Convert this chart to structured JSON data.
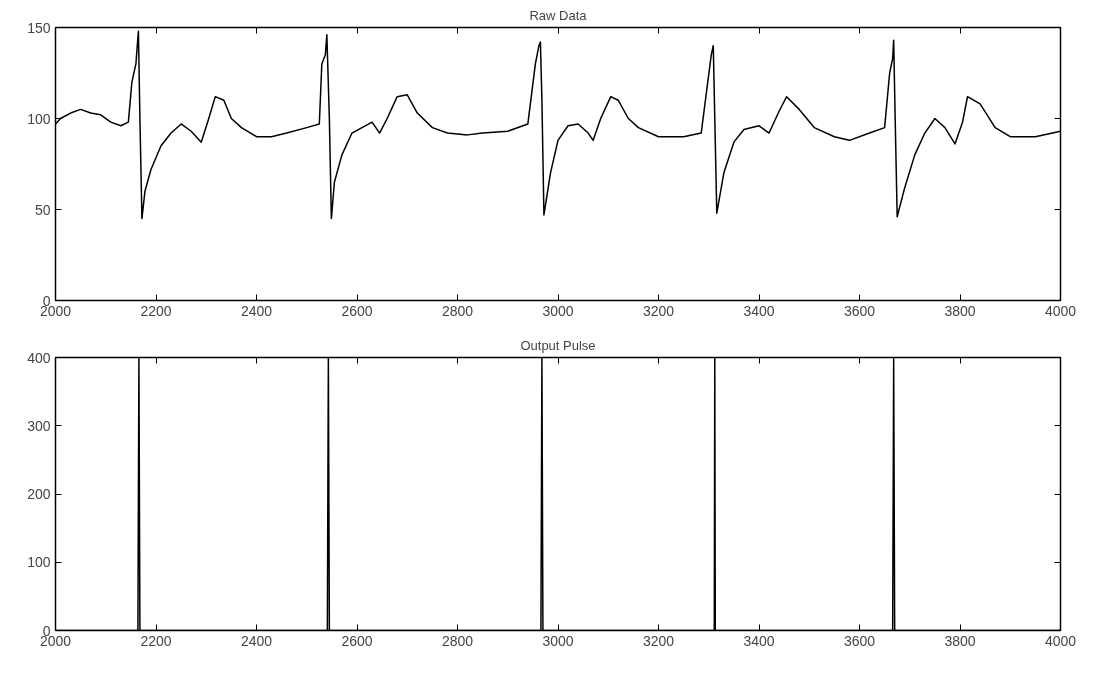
{
  "chart_data": [
    {
      "type": "line",
      "title": "Raw Data",
      "xlim": [
        2000,
        4000
      ],
      "ylim": [
        0,
        150
      ],
      "xticks": [
        2000,
        2200,
        2400,
        2600,
        2800,
        3000,
        3200,
        3400,
        3600,
        3800,
        4000
      ],
      "yticks": [
        0,
        50,
        100,
        150
      ],
      "grid": false,
      "marker": "none",
      "line_style": "solid",
      "series": [
        {
          "color": "#000000",
          "x": [
            2000,
            2010,
            2030,
            2050,
            2070,
            2090,
            2110,
            2130,
            2145,
            2152,
            2160,
            2165,
            2168,
            2172,
            2178,
            2190,
            2210,
            2230,
            2250,
            2270,
            2290,
            2305,
            2318,
            2335,
            2350,
            2370,
            2400,
            2430,
            2460,
            2500,
            2525,
            2530,
            2537,
            2540,
            2545,
            2549,
            2555,
            2570,
            2590,
            2610,
            2630,
            2645,
            2660,
            2680,
            2700,
            2720,
            2750,
            2780,
            2820,
            2850,
            2900,
            2940,
            2955,
            2962,
            2965,
            2968,
            2972,
            2985,
            3000,
            3020,
            3040,
            3060,
            3070,
            3085,
            3105,
            3120,
            3140,
            3160,
            3200,
            3250,
            3285,
            3298,
            3305,
            3309,
            3312,
            3316,
            3330,
            3350,
            3370,
            3400,
            3420,
            3440,
            3455,
            3480,
            3510,
            3550,
            3580,
            3620,
            3650,
            3660,
            3666,
            3668,
            3671,
            3675,
            3690,
            3710,
            3730,
            3750,
            3770,
            3790,
            3805,
            3815,
            3840,
            3870,
            3900,
            3950,
            4000
          ],
          "values": [
            97,
            100,
            103,
            105,
            103,
            102,
            98,
            96,
            98,
            120,
            130,
            148,
            100,
            45,
            60,
            72,
            85,
            92,
            97,
            93,
            87,
            100,
            112,
            110,
            100,
            95,
            90,
            90,
            92,
            95,
            97,
            130,
            135,
            146,
            100,
            45,
            65,
            80,
            92,
            95,
            98,
            92,
            100,
            112,
            113,
            103,
            95,
            92,
            91,
            92,
            93,
            97,
            130,
            140,
            142,
            110,
            47,
            70,
            88,
            96,
            97,
            92,
            88,
            100,
            112,
            110,
            100,
            95,
            90,
            90,
            92,
            120,
            135,
            140,
            100,
            48,
            70,
            87,
            94,
            96,
            92,
            104,
            112,
            105,
            95,
            90,
            88,
            92,
            95,
            125,
            133,
            143,
            100,
            46,
            62,
            80,
            92,
            100,
            95,
            86,
            98,
            112,
            108,
            95,
            90,
            90,
            93
          ]
        }
      ]
    },
    {
      "type": "line",
      "title": "Output Pulse",
      "xlim": [
        2000,
        4000
      ],
      "ylim": [
        0,
        400
      ],
      "xticks": [
        2000,
        2200,
        2400,
        2600,
        2800,
        3000,
        3200,
        3400,
        3600,
        3800,
        4000
      ],
      "yticks": [
        0,
        100,
        200,
        300,
        400
      ],
      "grid": false,
      "marker": "none",
      "line_style": "solid",
      "series": [
        {
          "color": "#000000",
          "x": [
            2000,
            2164,
            2165,
            2166,
            2167,
            2168,
            2541,
            2542,
            2543,
            2544,
            2545,
            2966,
            2967,
            2968,
            2969,
            2970,
            3311,
            3312,
            3313,
            3666,
            3667,
            3668,
            3669,
            3670,
            4000
          ],
          "values": [
            0,
            0,
            200,
            400,
            200,
            0,
            0,
            200,
            400,
            200,
            0,
            0,
            200,
            400,
            200,
            0,
            0,
            400,
            0,
            0,
            200,
            400,
            200,
            0,
            0
          ]
        }
      ]
    }
  ]
}
